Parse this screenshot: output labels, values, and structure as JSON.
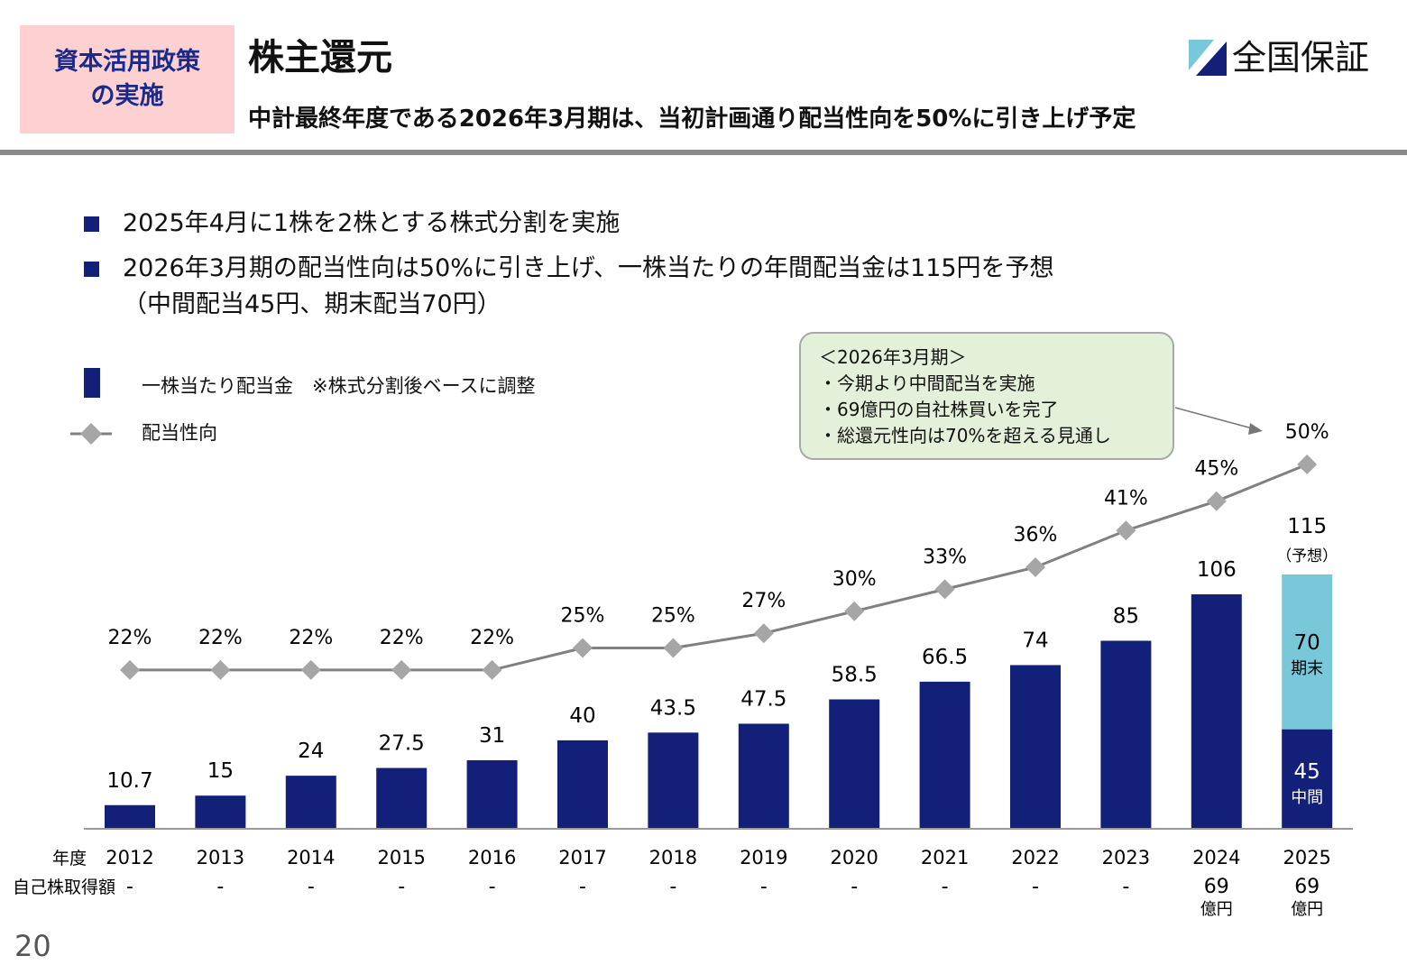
{
  "header": {
    "section_tag_line1": "資本活用政策",
    "section_tag_line2": "の実施",
    "title": "株主還元",
    "subtitle": "中計最終年度である2026年3月期は、当初計画通り配当性向を50%に引き上げ予定",
    "logo_text": "全国保証"
  },
  "bullets": [
    "2025年4月に1株を2株とする株式分割を実施",
    "2026年3月期の配当性向は50%に引き上げ、一株当たりの年間配当金は115円を予想",
    "（中間配当45円、期末配当70円）"
  ],
  "legend": {
    "bar": "一株当たり配当金　※株式分割後ベースに調整",
    "line": "配当性向"
  },
  "callout": {
    "lines": [
      "＜2026年3月期＞",
      "・今期より中間配当を実施",
      "・69億円の自社株買いを完了",
      "・総還元性向は70%を超える見通し"
    ]
  },
  "page_number": "20",
  "colors": {
    "bar": "#13207a",
    "bar_forecast_final": "#78c8da",
    "line": "#808080",
    "marker": "#a6a6a6",
    "tag_bg": "#fdd0d2",
    "callout_bg": "#e3f0da"
  },
  "chart_data": {
    "type": "bar+line",
    "x_row_label": "年度",
    "categories": [
      "2012",
      "2013",
      "2014",
      "2015",
      "2016",
      "2017",
      "2018",
      "2019",
      "2020",
      "2021",
      "2022",
      "2023",
      "2024",
      "2025"
    ],
    "dividend_per_share": {
      "values": [
        "10.7",
        "15",
        "24",
        "27.5",
        "31",
        "40",
        "43.5",
        "47.5",
        "58.5",
        "66.5",
        "74",
        "85",
        "106",
        "115"
      ]
    },
    "forecast_2025": {
      "total_label": "115",
      "forecast_note": "（予想）",
      "interim": {
        "value": 45,
        "label": "中間"
      },
      "final": {
        "value": 70,
        "label": "期末"
      }
    },
    "payout_ratio": {
      "values": [
        22,
        22,
        22,
        22,
        22,
        25,
        25,
        27,
        30,
        33,
        36,
        41,
        45,
        50
      ],
      "labels": [
        "22%",
        "22%",
        "22%",
        "22%",
        "22%",
        "25%",
        "25%",
        "27%",
        "30%",
        "33%",
        "36%",
        "41%",
        "45%",
        "50%"
      ]
    },
    "buyback_row_label": "自己株取得額",
    "buyback": [
      "-",
      "-",
      "-",
      "-",
      "-",
      "-",
      "-",
      "-",
      "-",
      "-",
      "-",
      "-",
      "69",
      "69"
    ],
    "buyback_unit": "億円"
  }
}
